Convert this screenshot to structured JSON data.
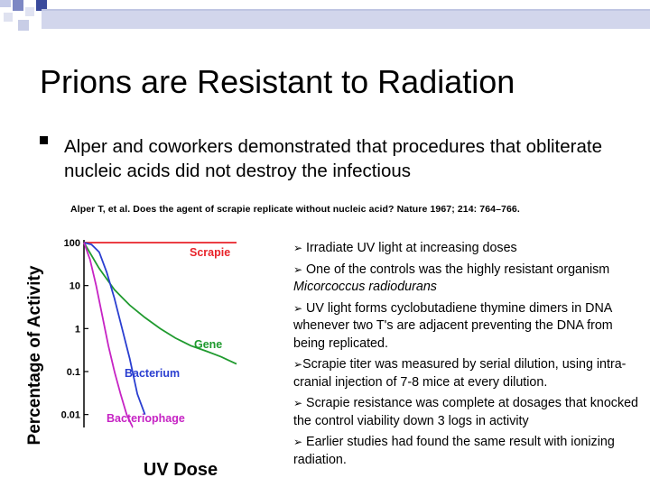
{
  "slide": {
    "title": "Prions are Resistant to Radiation",
    "main_bullet": "Alper and coworkers demonstrated that procedures that obliterate nucleic acids did not destroy the infectious",
    "citation": "Alper T, et al. Does the agent of scrapie replicate without nucleic acid? Nature 1967; 214: 764–766."
  },
  "notes": [
    {
      "text": "Irradiate UV light at increasing doses"
    },
    {
      "text": "One of the controls was the highly resistant organism ",
      "italic": "Micorcoccus radiodurans"
    },
    {
      "text": "UV light forms cyclobutadiene thymine dimers in DNA whenever two T's are adjacent preventing the DNA from being replicated."
    },
    {
      "text": "Scrapie titer was measured by serial dilution, using intra-cranial injection of 7-8 mice at every dilution."
    },
    {
      "text": "Scrapie resistance was complete at dosages that knocked the control viability down 3 logs in activity"
    },
    {
      "text": "Earlier studies had found the same result with ionizing radiation."
    }
  ],
  "colors": {
    "scrapie": "#e8232a",
    "gene": "#1f9a2e",
    "bacterium": "#2a3ed0",
    "bacteriophage": "#c623c4"
  },
  "chart_data": {
    "type": "line",
    "ylabel": "Percentage of Activity",
    "xlabel": "UV Dose",
    "yscale": "log",
    "yticks": [
      "100",
      "10",
      "1",
      "0.1",
      "0.01"
    ],
    "ylim": [
      0.005,
      100
    ],
    "x_range": [
      0,
      10
    ],
    "series": [
      {
        "name": "Scrapie",
        "x": [
          0,
          10
        ],
        "y": [
          100,
          100
        ]
      },
      {
        "name": "Gene",
        "x": [
          0,
          0.5,
          1,
          2,
          3,
          4,
          5,
          6,
          7,
          8,
          9,
          10
        ],
        "y": [
          100,
          50,
          25,
          8,
          3.5,
          1.8,
          1,
          0.6,
          0.4,
          0.3,
          0.22,
          0.15
        ]
      },
      {
        "name": "Bacterium",
        "x": [
          0,
          0.5,
          1,
          1.5,
          2,
          2.5,
          3,
          3.5,
          4
        ],
        "y": [
          100,
          90,
          60,
          20,
          5,
          1,
          0.2,
          0.03,
          0.01
        ]
      },
      {
        "name": "Bacteriophage",
        "x": [
          0,
          0.4,
          0.8,
          1.2,
          1.6,
          2,
          2.4,
          2.8,
          3.2
        ],
        "y": [
          100,
          40,
          10,
          2,
          0.4,
          0.1,
          0.03,
          0.01,
          0.005
        ]
      }
    ]
  }
}
